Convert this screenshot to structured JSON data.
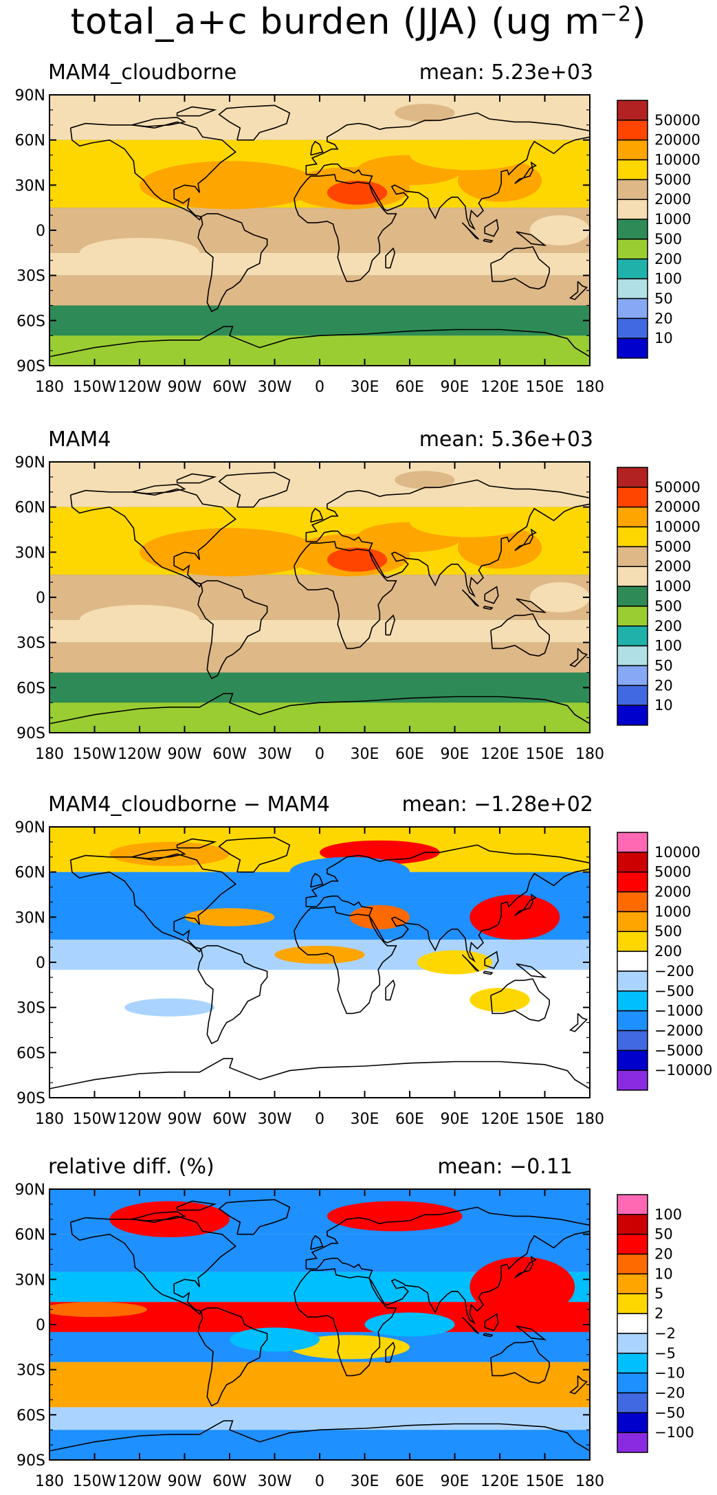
{
  "figure": {
    "title_main": "total_a+c burden (JJA) (ug m",
    "title_exp": "−2",
    "title_close": ")"
  },
  "axes": {
    "lat_ticks": [
      "90N",
      "60N",
      "30N",
      "0",
      "30S",
      "60S",
      "90S"
    ],
    "lon_ticks": [
      "180",
      "150W",
      "120W",
      "90W",
      "60W",
      "30W",
      "0",
      "30E",
      "60E",
      "90E",
      "120E",
      "150E",
      "180"
    ]
  },
  "chart_data": [
    {
      "type": "heatmap",
      "label": "MAM4_cloudborne",
      "mean_text": "mean: 5.23e+03",
      "xlim": [
        -180,
        180
      ],
      "ylim": [
        -90,
        90
      ],
      "colorbar_labels": [
        "50000",
        "20000",
        "10000",
        "5000",
        "2000",
        "1000",
        "500",
        "200",
        "100",
        "50",
        "20",
        "10"
      ],
      "colorbar_colors": [
        "#b22222",
        "#ff4500",
        "#ffa500",
        "#ffd700",
        "#deb887",
        "#f5deb3",
        "#2e8b57",
        "#9acd32",
        "#20b2aa",
        "#b0e0e6",
        "#87a9f5",
        "#4169e1",
        "#0000cd"
      ]
    },
    {
      "type": "heatmap",
      "label": "MAM4",
      "mean_text": "mean: 5.36e+03",
      "xlim": [
        -180,
        180
      ],
      "ylim": [
        -90,
        90
      ],
      "colorbar_labels": [
        "50000",
        "20000",
        "10000",
        "5000",
        "2000",
        "1000",
        "500",
        "200",
        "100",
        "50",
        "20",
        "10"
      ],
      "colorbar_colors": [
        "#b22222",
        "#ff4500",
        "#ffa500",
        "#ffd700",
        "#deb887",
        "#f5deb3",
        "#2e8b57",
        "#9acd32",
        "#20b2aa",
        "#b0e0e6",
        "#87a9f5",
        "#4169e1",
        "#0000cd"
      ]
    },
    {
      "type": "heatmap",
      "label": "MAM4_cloudborne − MAM4",
      "mean_text": "mean: −1.28e+02",
      "xlim": [
        -180,
        180
      ],
      "ylim": [
        -90,
        90
      ],
      "colorbar_labels": [
        "10000",
        "5000",
        "2000",
        "1000",
        "500",
        "200",
        "−200",
        "−500",
        "−1000",
        "−2000",
        "−5000",
        "−10000"
      ],
      "colorbar_colors": [
        "#ff69b4",
        "#cc0000",
        "#ff0000",
        "#ff6a00",
        "#ffa500",
        "#ffd700",
        "#ffffff",
        "#aad4ff",
        "#00bfff",
        "#1e90ff",
        "#4169e1",
        "#0000cd",
        "#8a2be2"
      ]
    },
    {
      "type": "heatmap",
      "label": "relative diff. (%)",
      "mean_text": "mean: −0.11",
      "xlim": [
        -180,
        180
      ],
      "ylim": [
        -90,
        90
      ],
      "colorbar_labels": [
        "100",
        "50",
        "20",
        "10",
        "5",
        "2",
        "−2",
        "−5",
        "−10",
        "−20",
        "−50",
        "−100"
      ],
      "colorbar_colors": [
        "#ff69b4",
        "#cc0000",
        "#ff0000",
        "#ff6a00",
        "#ffa500",
        "#ffd700",
        "#ffffff",
        "#aad4ff",
        "#00bfff",
        "#1e90ff",
        "#4169e1",
        "#0000cd",
        "#8a2be2"
      ]
    }
  ]
}
